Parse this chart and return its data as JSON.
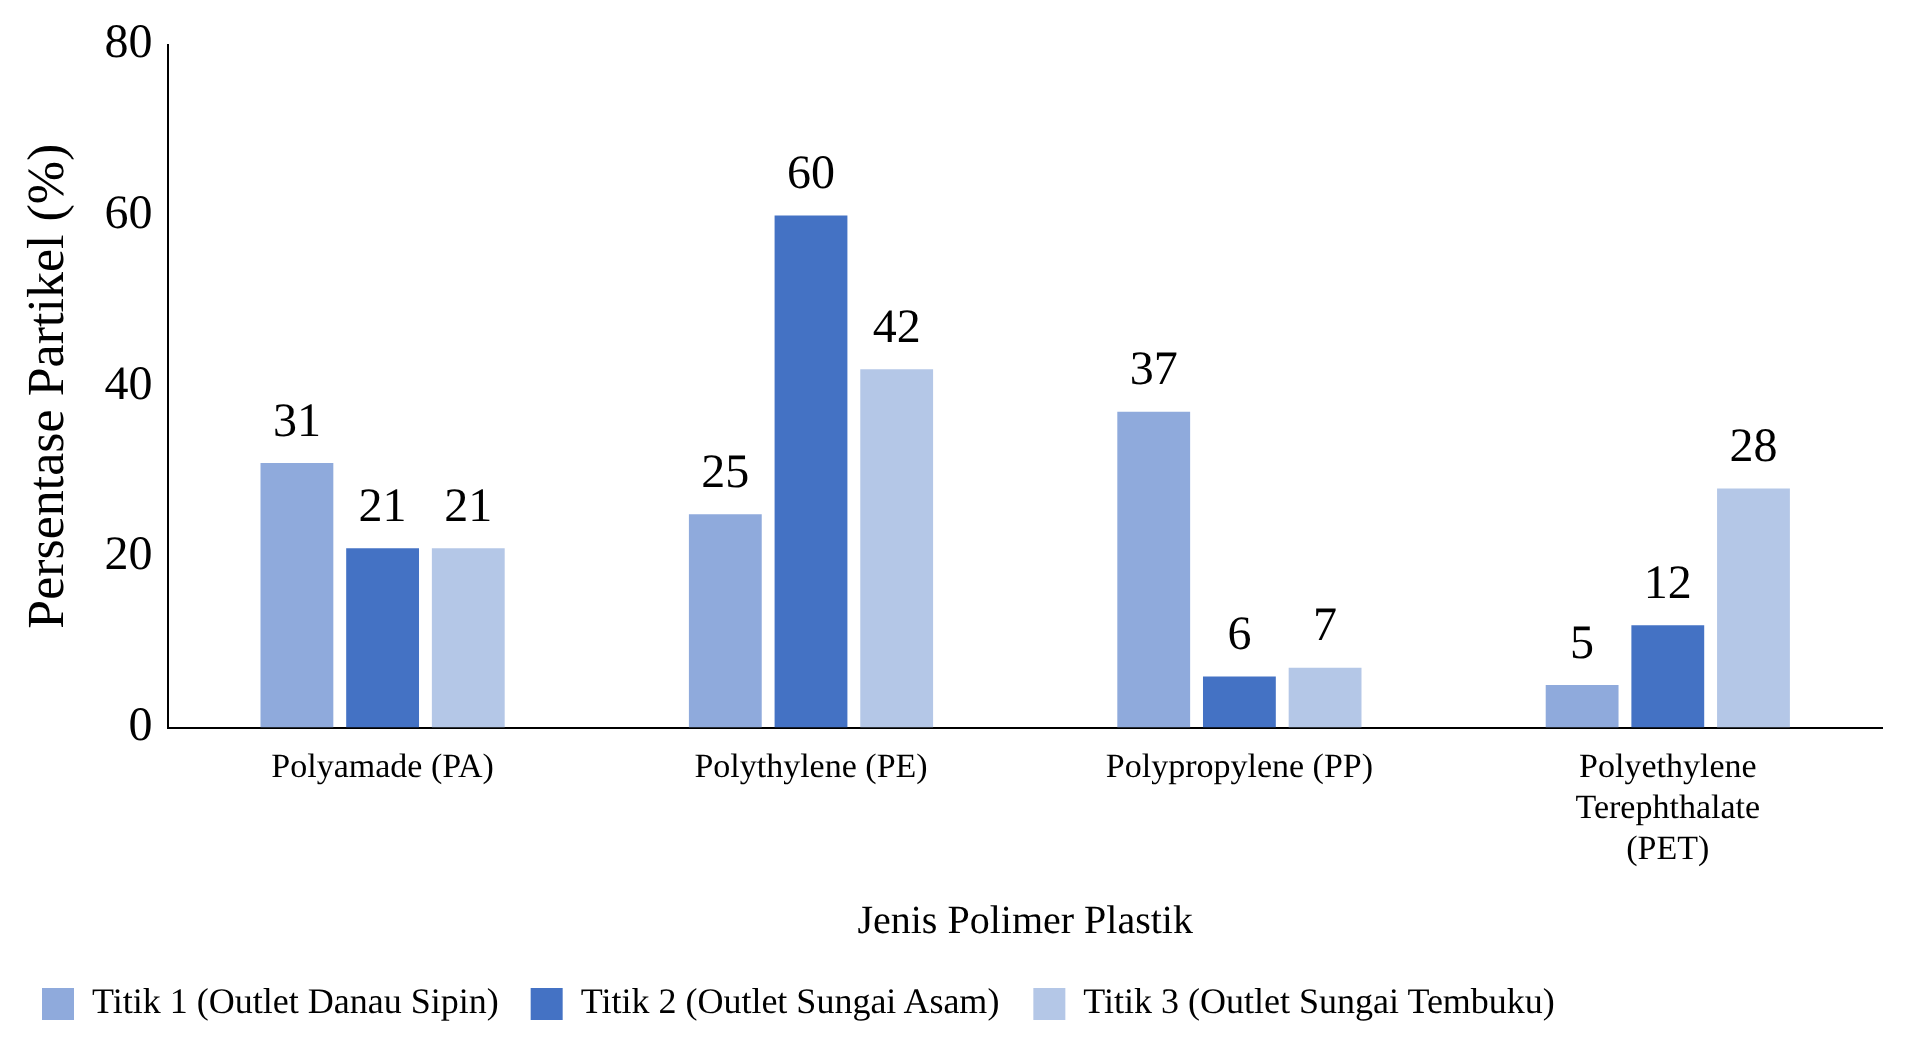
{
  "chart_data": {
    "type": "bar",
    "xlabel": "Jenis Polimer Plastik",
    "ylabel": "Persentase Partikel (%)",
    "categories": [
      "Polyamade (PA)",
      "Polythylene (PE)",
      "Polypropylene (PP)",
      "Polyethylene Terephthalate (PET)"
    ],
    "series": [
      {
        "name": "Titik 1 (Outlet Danau Sipin)",
        "color": "#8faadc",
        "values": [
          31,
          25,
          37,
          5
        ]
      },
      {
        "name": "Titik 2 (Outlet Sungai Asam)",
        "color": "#4472c4",
        "values": [
          21,
          60,
          6,
          12
        ]
      },
      {
        "name": "Titik 3 (Outlet Sungai Tembuku)",
        "color": "#b4c7e7",
        "values": [
          21,
          42,
          7,
          28
        ]
      }
    ],
    "ylim": [
      0,
      80
    ],
    "yticks": [
      0,
      20,
      40,
      60,
      80
    ],
    "grid": false,
    "legend": "bottom",
    "data_labels": true
  }
}
